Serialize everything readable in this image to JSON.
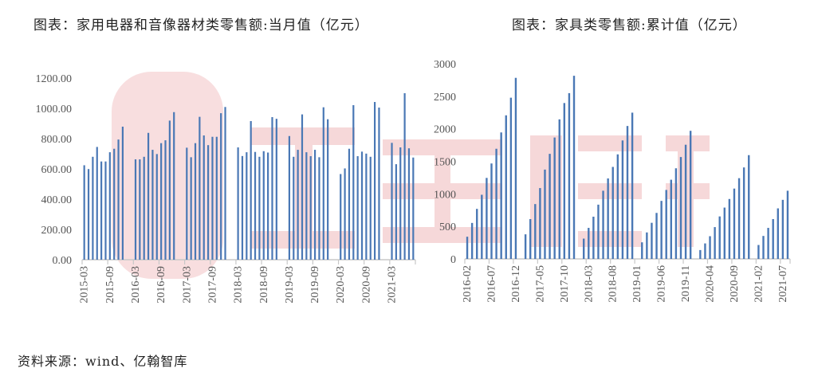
{
  "source": "资料来源：wind、亿翰智库",
  "watermark": "亿翰智库",
  "colors": {
    "bar": "#4a78b5",
    "watermark": "#f2c4c6",
    "axis": "#c8c8c8"
  },
  "chart_data": [
    {
      "type": "bar",
      "title": "图表：家用电器和音像器材类零售额:当月值（亿元）",
      "ylim": [
        0,
        1200
      ],
      "yticks": [
        "0.00",
        "200.00",
        "400.00",
        "600.00",
        "800.00",
        "1000.00",
        "1200.00"
      ],
      "xtick_labels": [
        "2015-03",
        "2015-09",
        "2016-03",
        "2016-09",
        "2017-03",
        "2017-09",
        "2018-03",
        "2018-09",
        "2019-03",
        "2019-09",
        "2020-03",
        "2020-09",
        "2021-03"
      ],
      "start": "2015-03",
      "end": "2021-08",
      "values": {
        "2015": [
          null,
          null,
          624,
          599,
          680,
          745,
          649,
          649,
          710,
          733,
          794,
          879
        ],
        "2016": [
          null,
          null,
          663,
          663,
          680,
          838,
          726,
          698,
          770,
          789,
          919,
          975
        ],
        "2017": [
          null,
          null,
          740,
          677,
          770,
          944,
          821,
          757,
          812,
          812,
          968,
          1009
        ],
        "2018": [
          null,
          null,
          742,
          685,
          710,
          916,
          712,
          680,
          717,
          708,
          942,
          931
        ],
        "2019": [
          null,
          null,
          817,
          680,
          726,
          960,
          710,
          684,
          726,
          677,
          1007,
          928
        ],
        "2020": [
          null,
          null,
          566,
          603,
          733,
          1021,
          684,
          714,
          701,
          680,
          1042,
          1005
        ],
        "2021": [
          null,
          null,
          772,
          631,
          742,
          1100,
          736,
          675
        ]
      }
    },
    {
      "type": "bar",
      "title": "图表：家具类零售额:累计值（亿元）",
      "ylim": [
        0,
        3000
      ],
      "yticks": [
        "0",
        "500",
        "1000",
        "1500",
        "2000",
        "2500",
        "3000"
      ],
      "xtick_labels": [
        "2016-02",
        "2016-07",
        "2016-12",
        "2017-05",
        "2017-10",
        "2018-03",
        "2018-08",
        "2019-01",
        "2019-06",
        "2019-11",
        "2020-04",
        "2020-09",
        "2021-02",
        "2021-07"
      ],
      "start": "2016-02",
      "end": "2021-08",
      "values": {
        "2016": [
          null,
          341,
          553,
          769,
          986,
          1245,
          1467,
          1693,
          1944,
          2207,
          2478,
          2783
        ],
        "2017": [
          null,
          378,
          612,
          843,
          1089,
          1373,
          1615,
          1866,
          2145,
          2396,
          2548,
          2815
        ],
        "2018": [
          null,
          312,
          477,
          649,
          834,
          1048,
          1237,
          1414,
          1607,
          1821,
          2043,
          2248
        ],
        "2019": [
          null,
          255,
          407,
          555,
          707,
          892,
          1060,
          1217,
          1393,
          1566,
          1755,
          1969
        ],
        "2020": [
          null,
          136,
          238,
          349,
          489,
          653,
          789,
          921,
          1081,
          1241,
          1406,
          1595
        ],
        "2021": [
          null,
          214,
          353,
          477,
          612,
          777,
          908,
          1048
        ]
      }
    }
  ]
}
